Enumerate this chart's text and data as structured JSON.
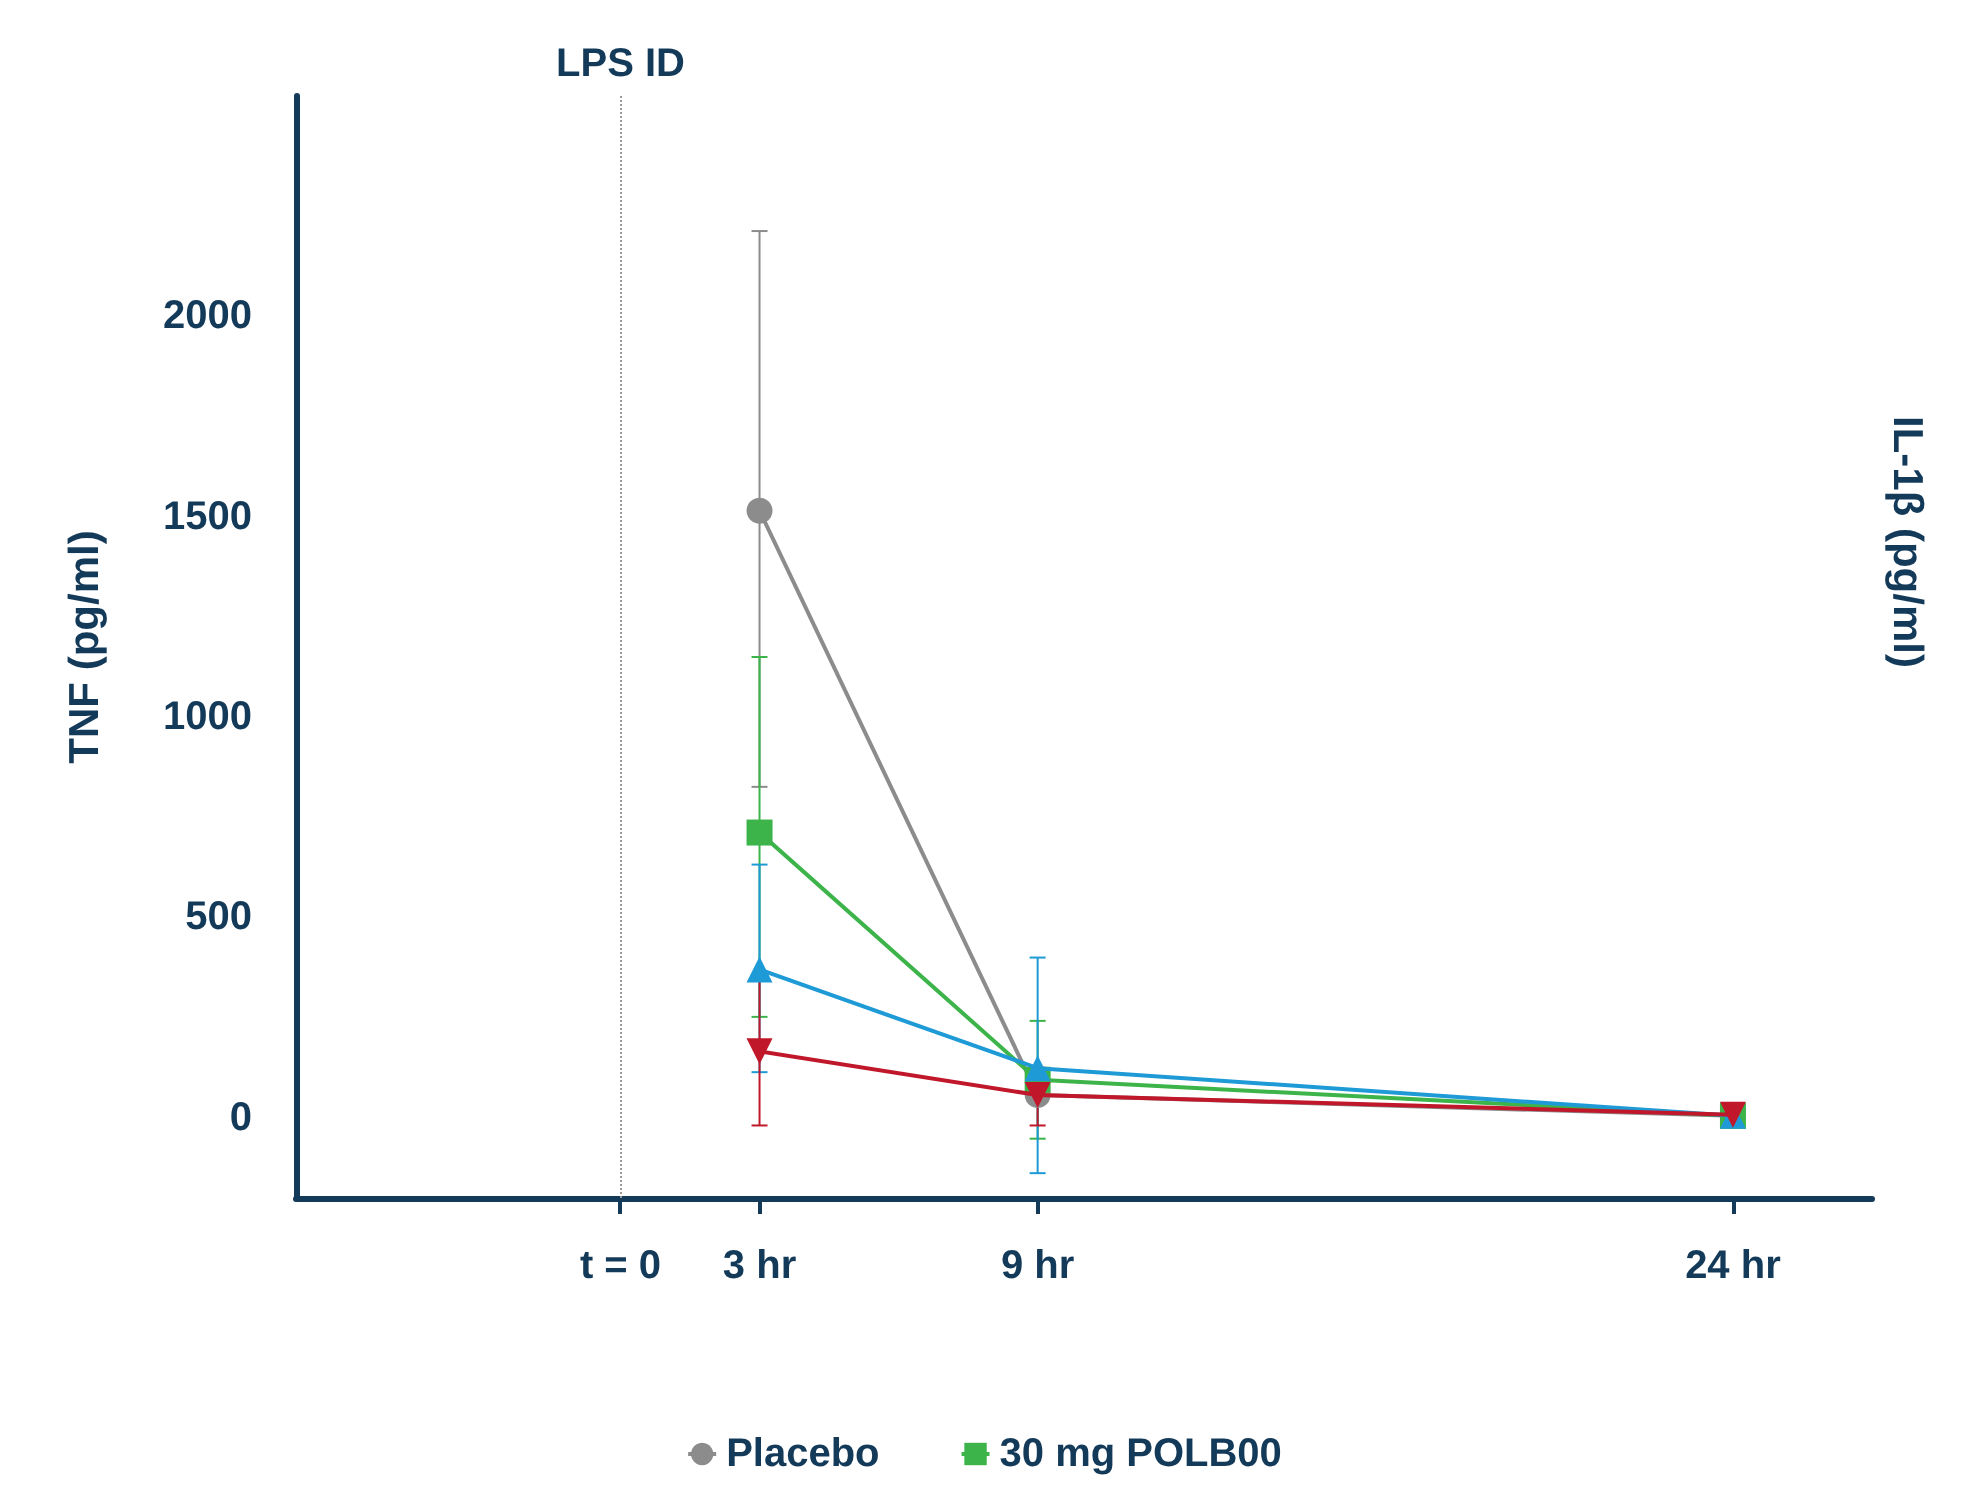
{
  "chart_data": {
    "type": "line",
    "ylabel": "TNF (pg/ml)",
    "y2label": "IL-1β (pg/ml)",
    "x": [
      3,
      9,
      24
    ],
    "xlim": [
      -7,
      27
    ],
    "xticks": [
      {
        "value": 0,
        "label": "t = 0"
      },
      {
        "value": 3,
        "label": "3 hr"
      },
      {
        "value": 9,
        "label": "9 hr"
      },
      {
        "value": 24,
        "label": "24 hr"
      }
    ],
    "ylim": [
      -200,
      2550
    ],
    "yticks": [
      0,
      500,
      1000,
      1500,
      2000
    ],
    "grid": false,
    "legend": "bottom",
    "ref_lines": [
      {
        "axis": "x",
        "value": 0,
        "label": "LPS ID",
        "color": "#9a9a9a",
        "line_style": "dotted"
      }
    ],
    "series": [
      {
        "name": "Placebo",
        "color": "#8c8c8c",
        "marker": "circle",
        "values": [
          1515,
          57,
          5
        ],
        "errors": [
          [
            826,
            2213
          ],
          null,
          null
        ]
      },
      {
        "name": "30 mg POLB00",
        "color": "#3cb44a",
        "marker": "square",
        "values": [
          712,
          95,
          5
        ],
        "errors": [
          [
            252,
            1150
          ],
          [
            -52,
            242
          ],
          null
        ]
      },
      {
        "color": "#1e9ad6",
        "marker": "triangle",
        "values": [
          370,
          124,
          5
        ],
        "errors": [
          [
            114,
            632
          ],
          [
            -138,
            400
          ],
          null
        ]
      },
      {
        "color": "#c0182a",
        "marker": "triangle-down",
        "values": [
          166,
          57,
          8
        ],
        "errors": [
          [
            -19,
            347
          ],
          [
            -19,
            125
          ],
          null
        ]
      }
    ]
  }
}
